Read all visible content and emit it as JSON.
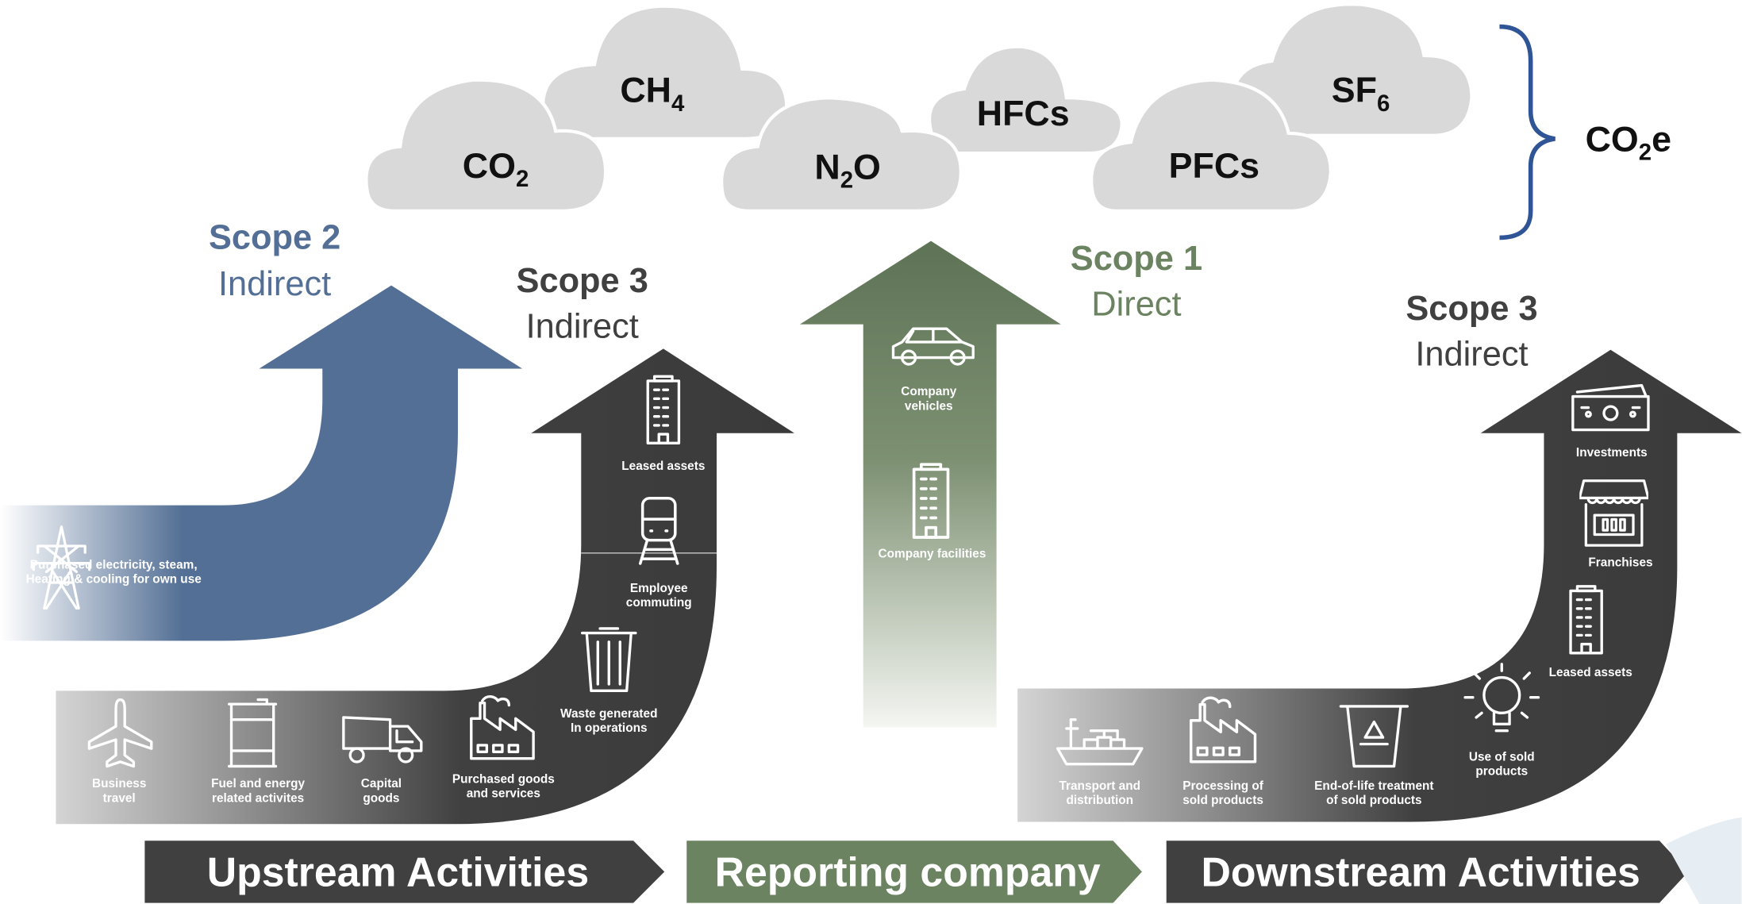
{
  "gases": [
    {
      "name": "CO",
      "sub": "2"
    },
    {
      "name": "CH",
      "sub": "4"
    },
    {
      "name": "N",
      "sub": "2",
      "rest": "O"
    },
    {
      "name": "HFCs"
    },
    {
      "name": "PFCs"
    },
    {
      "name": "SF",
      "sub": "6"
    }
  ],
  "total": {
    "name": "CO",
    "sub": "2",
    "rest": "e"
  },
  "scopes": [
    {
      "title": "Scope 2",
      "kind": "Indirect"
    },
    {
      "title": "Scope 3",
      "kind": "Indirect"
    },
    {
      "title": "Scope 1",
      "kind": "Direct"
    },
    {
      "title": "Scope 3",
      "kind": "Indirect"
    }
  ],
  "scope2_activities": [
    {
      "lines": [
        "Purchased electricity, steam,",
        "Heating & cooling for own use"
      ]
    }
  ],
  "upstream_activities": [
    {
      "lines": [
        "Business",
        "travel"
      ]
    },
    {
      "lines": [
        "Fuel and energy",
        "related activites"
      ]
    },
    {
      "lines": [
        "Capital",
        "goods"
      ]
    },
    {
      "lines": [
        "Purchased goods",
        "and services"
      ]
    },
    {
      "lines": [
        "Waste generated",
        "In operations"
      ]
    },
    {
      "lines": [
        "Employee",
        "commuting"
      ]
    },
    {
      "lines": [
        "Leased assets"
      ]
    }
  ],
  "scope1_activities": [
    {
      "lines": [
        "Company",
        "vehicles"
      ]
    },
    {
      "lines": [
        "Company facilities"
      ]
    }
  ],
  "downstream_activities": [
    {
      "lines": [
        "Transport and",
        "distribution"
      ]
    },
    {
      "lines": [
        "Processing of",
        "sold products"
      ]
    },
    {
      "lines": [
        "End-of-life treatment",
        "of sold products"
      ]
    },
    {
      "lines": [
        "Use of sold",
        "products"
      ]
    },
    {
      "lines": [
        "Leased assets"
      ]
    },
    {
      "lines": [
        "Franchises"
      ]
    },
    {
      "lines": [
        "Investments"
      ]
    }
  ],
  "banners": [
    "Upstream Activities",
    "Reporting company",
    "Downstream Activities"
  ]
}
